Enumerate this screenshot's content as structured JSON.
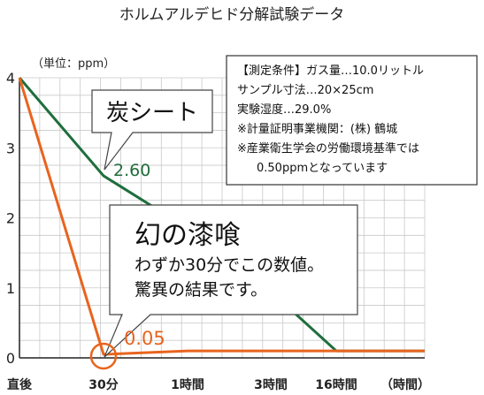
{
  "chart_data": {
    "type": "line",
    "title": "ホルムアルデヒド分解試験データ",
    "ylabel": "（単位：ppm）",
    "xunit": "（時間）",
    "categories": [
      "直後",
      "30分",
      "1時間",
      "3時間",
      "16時間"
    ],
    "yticks": [
      "0",
      "1",
      "2",
      "3",
      "4"
    ],
    "ylim": [
      0,
      4
    ],
    "grid": true,
    "series": [
      {
        "name": "炭シート",
        "color": "#1e6e3c",
        "values": [
          4.0,
          2.6,
          1.85,
          0.95,
          0.1
        ]
      },
      {
        "name": "幻の漆喰",
        "color": "#e8641e",
        "values": [
          4.0,
          0.05,
          0.1,
          0.1,
          0.1
        ]
      }
    ],
    "annotations": {
      "green_value": "2.60",
      "orange_value": "0.05",
      "callout_sheet": "炭シート",
      "callout_plaster_title": "幻の漆喰",
      "callout_plaster_line1": "わずか30分でこの数値。",
      "callout_plaster_line2": "驚異の結果です。"
    },
    "conditions": [
      "【測定条件】ガス量…10.0リットル",
      "サンプル寸法…20×25cm",
      "実験湿度…29.0%",
      "※計量証明事業機関：(株) 鶴城",
      "※産業衛生学会の労働環境基準では",
      "0.50ppmとなっています"
    ]
  }
}
